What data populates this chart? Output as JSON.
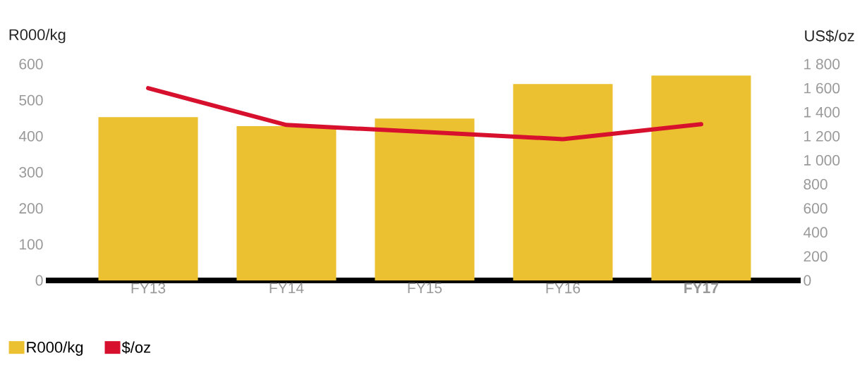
{
  "chart_data": {
    "type": "bar",
    "ylabel": "R000/kg",
    "y2label": "US$/oz",
    "categories": [
      "FY13",
      "FY14",
      "FY15",
      "FY16",
      "**FY17**"
    ],
    "series": [
      {
        "name": "R000/kg",
        "color": "#ebc031",
        "values": [
          453,
          428,
          449,
          545,
          568
        ]
      },
      {
        "name": "$/oz",
        "type": "line",
        "axis": "y2",
        "color": "#d7102e",
        "values": [
          1600,
          1294,
          1235,
          1176,
          1300
        ]
      }
    ],
    "ylim": [
      0,
      600
    ],
    "yticks": [
      0,
      100,
      200,
      300,
      400,
      500,
      600
    ],
    "y2lim": [
      0,
      1800
    ],
    "y2ticks": [
      0,
      200,
      400,
      600,
      800,
      {
        "value": 1000,
        "label": "1 000"
      },
      {
        "value": 1200,
        "label": "1 200"
      },
      {
        "value": 1400,
        "label": "1 400"
      },
      {
        "value": 1600,
        "label": "1 600"
      },
      {
        "value": 1800,
        "label": "1 800"
      }
    ],
    "legend": "bottom left",
    "grid": false
  }
}
